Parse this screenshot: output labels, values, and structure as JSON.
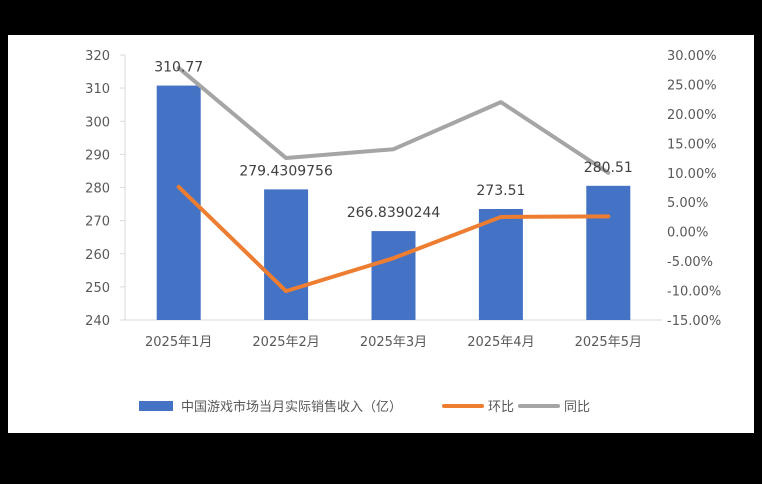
{
  "chart_data": {
    "type": "bar+line",
    "title": "",
    "categories": [
      "2025年1月",
      "2025年2月",
      "2025年3月",
      "2025年4月",
      "2025年5月"
    ],
    "series": [
      {
        "name": "中国游戏市场当月实际销售收入（亿）",
        "type": "bar",
        "axis": "left",
        "color": "#4472C4",
        "values": [
          310.77,
          279.4309756,
          266.8390244,
          273.51,
          280.51
        ],
        "labels": [
          "310.77",
          "279.4309756",
          "266.8390244",
          "273.51",
          "280.51"
        ]
      },
      {
        "name": "环比",
        "type": "line",
        "axis": "right",
        "color": "#ED7D31",
        "values": [
          7.6,
          -10.1,
          -4.5,
          2.5,
          2.6
        ]
      },
      {
        "name": "同比",
        "type": "line",
        "axis": "right",
        "color": "#A5A5A5",
        "values": [
          27.8,
          12.5,
          14.0,
          22.0,
          10.0
        ]
      }
    ],
    "left_axis": {
      "min": 240,
      "max": 320,
      "step": 10,
      "ticks": [
        "320",
        "310",
        "300",
        "290",
        "280",
        "270",
        "260",
        "250",
        "240"
      ]
    },
    "right_axis": {
      "min": -15,
      "max": 30,
      "step": 5,
      "unit": "%",
      "ticks": [
        "30.00%",
        "25.00%",
        "20.00%",
        "15.00%",
        "10.00%",
        "5.00%",
        "0.00%",
        "-5.00%",
        "-10.00%",
        "-15.00%"
      ]
    },
    "grid": false,
    "legend_position": "bottom",
    "legend": [
      "中国游戏市场当月实际销售收入（亿）",
      "环比",
      "同比"
    ]
  }
}
